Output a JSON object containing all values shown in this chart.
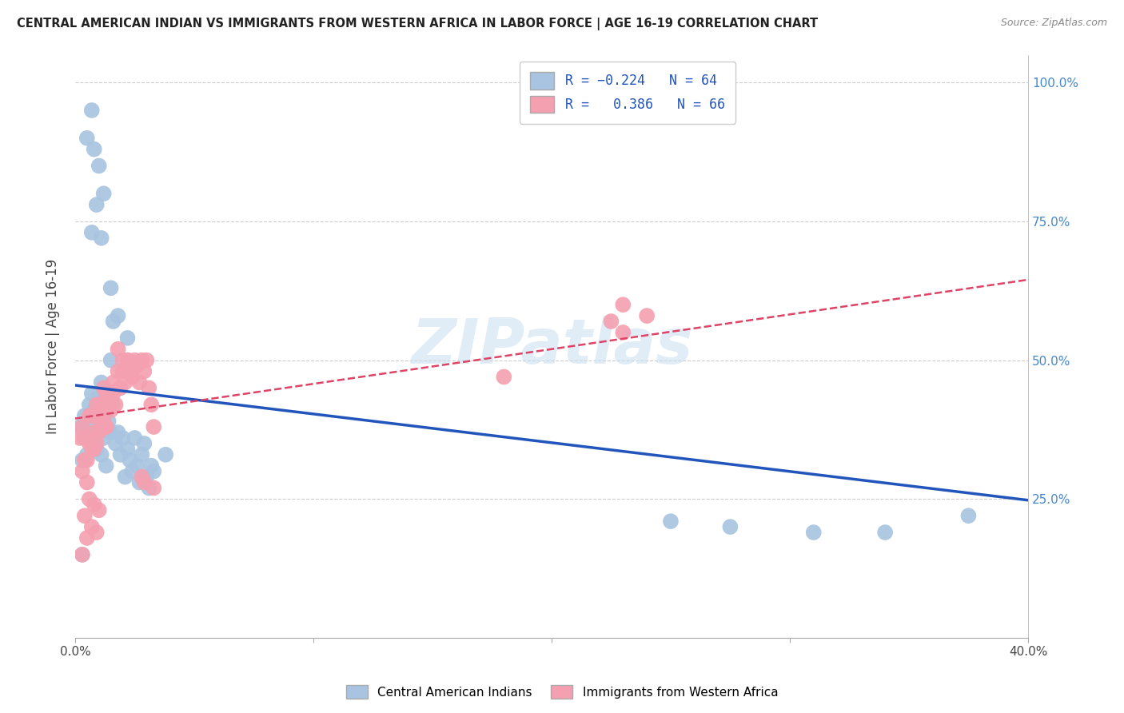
{
  "title": "CENTRAL AMERICAN INDIAN VS IMMIGRANTS FROM WESTERN AFRICA IN LABOR FORCE | AGE 16-19 CORRELATION CHART",
  "source": "Source: ZipAtlas.com",
  "ylabel": "In Labor Force | Age 16-19",
  "x_lim": [
    0.0,
    0.4
  ],
  "y_lim": [
    0.0,
    1.05
  ],
  "watermark": "ZIPatlas",
  "blue_R": -0.224,
  "blue_N": 64,
  "pink_R": 0.386,
  "pink_N": 66,
  "blue_color": "#a8c4e0",
  "pink_color": "#f4a0b0",
  "blue_line_color": "#2255bb",
  "pink_line_color": "#dd4466",
  "blue_label": "Central American Indians",
  "pink_label": "Immigrants from Western Africa",
  "background_color": "#ffffff",
  "grid_color": "#cccccc",
  "right_axis_color": "#4488cc",
  "blue_scatter_x": [
    0.002,
    0.003,
    0.003,
    0.004,
    0.004,
    0.005,
    0.005,
    0.006,
    0.006,
    0.007,
    0.007,
    0.007,
    0.008,
    0.008,
    0.009,
    0.009,
    0.009,
    0.01,
    0.01,
    0.011,
    0.011,
    0.012,
    0.012,
    0.013,
    0.013,
    0.014,
    0.015,
    0.015,
    0.016,
    0.017,
    0.018,
    0.019,
    0.02,
    0.021,
    0.022,
    0.023,
    0.024,
    0.025,
    0.026,
    0.027,
    0.028,
    0.029,
    0.03,
    0.032,
    0.005,
    0.007,
    0.008,
    0.01,
    0.012,
    0.007,
    0.009,
    0.011,
    0.015,
    0.016,
    0.018,
    0.022,
    0.031,
    0.033,
    0.038,
    0.25,
    0.275,
    0.31,
    0.34,
    0.375
  ],
  "blue_scatter_y": [
    0.38,
    0.32,
    0.15,
    0.4,
    0.36,
    0.38,
    0.33,
    0.42,
    0.38,
    0.44,
    0.36,
    0.35,
    0.39,
    0.41,
    0.37,
    0.34,
    0.43,
    0.38,
    0.43,
    0.46,
    0.33,
    0.4,
    0.36,
    0.44,
    0.31,
    0.39,
    0.5,
    0.37,
    0.42,
    0.35,
    0.37,
    0.33,
    0.36,
    0.29,
    0.34,
    0.32,
    0.3,
    0.36,
    0.31,
    0.28,
    0.33,
    0.35,
    0.29,
    0.31,
    0.9,
    0.95,
    0.88,
    0.85,
    0.8,
    0.73,
    0.78,
    0.72,
    0.63,
    0.57,
    0.58,
    0.54,
    0.27,
    0.3,
    0.33,
    0.21,
    0.2,
    0.19,
    0.19,
    0.22
  ],
  "pink_scatter_x": [
    0.002,
    0.003,
    0.003,
    0.004,
    0.004,
    0.005,
    0.005,
    0.006,
    0.006,
    0.007,
    0.007,
    0.008,
    0.008,
    0.009,
    0.009,
    0.01,
    0.01,
    0.011,
    0.011,
    0.012,
    0.012,
    0.013,
    0.013,
    0.014,
    0.015,
    0.015,
    0.016,
    0.017,
    0.018,
    0.019,
    0.02,
    0.021,
    0.022,
    0.023,
    0.024,
    0.025,
    0.026,
    0.027,
    0.028,
    0.029,
    0.03,
    0.031,
    0.032,
    0.033,
    0.003,
    0.004,
    0.005,
    0.006,
    0.007,
    0.008,
    0.009,
    0.01,
    0.013,
    0.015,
    0.016,
    0.018,
    0.02,
    0.022,
    0.028,
    0.029,
    0.033,
    0.18,
    0.225,
    0.23,
    0.23,
    0.24
  ],
  "pink_scatter_y": [
    0.36,
    0.3,
    0.38,
    0.36,
    0.32,
    0.32,
    0.28,
    0.4,
    0.35,
    0.34,
    0.4,
    0.37,
    0.34,
    0.35,
    0.42,
    0.4,
    0.37,
    0.42,
    0.38,
    0.45,
    0.39,
    0.44,
    0.38,
    0.43,
    0.44,
    0.41,
    0.46,
    0.42,
    0.48,
    0.45,
    0.5,
    0.46,
    0.5,
    0.48,
    0.47,
    0.5,
    0.49,
    0.46,
    0.5,
    0.48,
    0.5,
    0.45,
    0.42,
    0.38,
    0.15,
    0.22,
    0.18,
    0.25,
    0.2,
    0.24,
    0.19,
    0.23,
    0.38,
    0.42,
    0.44,
    0.52,
    0.48,
    0.5,
    0.29,
    0.28,
    0.27,
    0.47,
    0.57,
    0.55,
    0.6,
    0.58
  ],
  "blue_line_x": [
    0.0,
    0.4
  ],
  "blue_line_y": [
    0.455,
    0.248
  ],
  "pink_line_x": [
    0.0,
    0.4
  ],
  "pink_line_y": [
    0.395,
    0.645
  ]
}
